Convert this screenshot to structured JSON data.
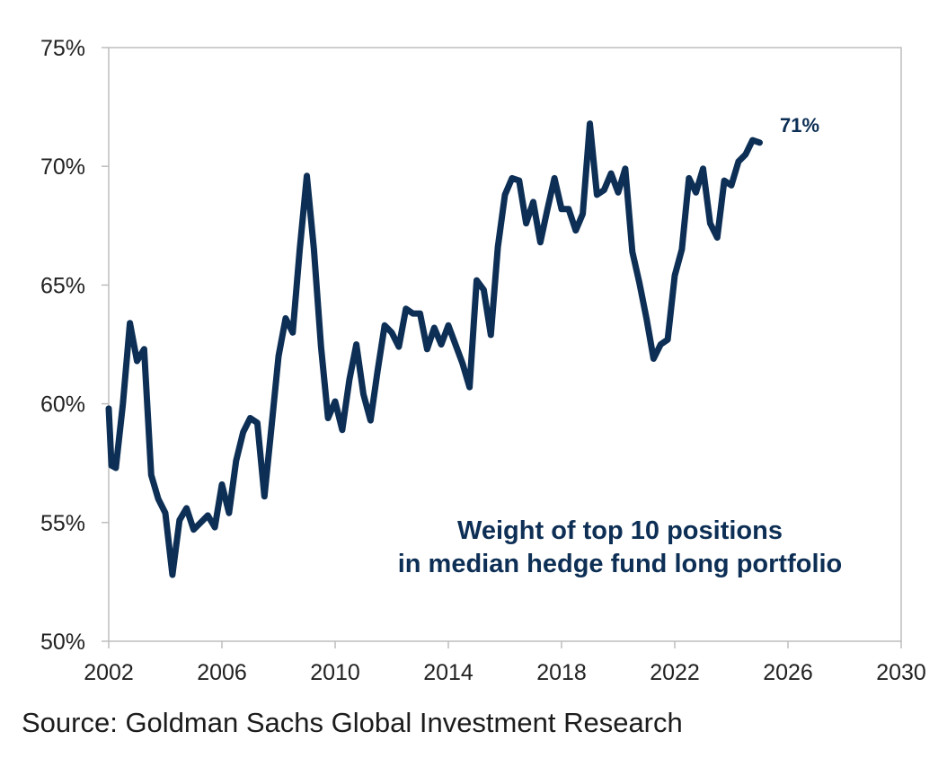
{
  "chart_data": {
    "type": "line",
    "title": "",
    "xlabel": "",
    "ylabel": "",
    "xlim": [
      2002,
      2030
    ],
    "ylim": [
      50,
      75
    ],
    "x_ticks": [
      2002,
      2006,
      2010,
      2014,
      2018,
      2022,
      2026,
      2030
    ],
    "y_ticks": [
      50,
      55,
      60,
      65,
      70,
      75
    ],
    "y_tick_labels": [
      "50%",
      "55%",
      "60%",
      "65%",
      "70%",
      "75%"
    ],
    "grid": false,
    "annotation": [
      "Weight of top 10 positions",
      "in median hedge fund long portfolio"
    ],
    "end_label": "71%",
    "line_color": "#0d2f55",
    "series": [
      {
        "x": [
          2002.0,
          2002.1,
          2002.25,
          2002.5,
          2002.75,
          2003.0,
          2003.25,
          2003.5,
          2003.75,
          2004.0,
          2004.25,
          2004.5,
          2004.75,
          2005.0,
          2005.25,
          2005.5,
          2005.75,
          2006.0,
          2006.25,
          2006.5,
          2006.75,
          2007.0,
          2007.25,
          2007.5,
          2007.75,
          2008.0,
          2008.25,
          2008.5,
          2008.75,
          2009.0,
          2009.25,
          2009.5,
          2009.75,
          2010.0,
          2010.25,
          2010.5,
          2010.75,
          2011.0,
          2011.25,
          2011.5,
          2011.75,
          2012.0,
          2012.25,
          2012.5,
          2012.75,
          2013.0,
          2013.25,
          2013.5,
          2013.75,
          2014.0,
          2014.25,
          2014.5,
          2014.75,
          2015.0,
          2015.25,
          2015.5,
          2015.75,
          2016.0,
          2016.25,
          2016.5,
          2016.75,
          2017.0,
          2017.25,
          2017.5,
          2017.75,
          2018.0,
          2018.25,
          2018.5,
          2018.75,
          2019.0,
          2019.25,
          2019.5,
          2019.75,
          2020.0,
          2020.25,
          2020.5,
          2020.75,
          2021.0,
          2021.25,
          2021.5,
          2021.75,
          2022.0,
          2022.25,
          2022.5,
          2022.75,
          2023.0,
          2023.25,
          2023.5,
          2023.75,
          2024.0,
          2024.25,
          2024.5,
          2024.75,
          2025.0
        ],
        "y": [
          59.8,
          57.4,
          57.3,
          60.0,
          63.4,
          61.8,
          62.3,
          57.0,
          56.0,
          55.4,
          52.8,
          55.1,
          55.6,
          54.7,
          55.0,
          55.3,
          54.8,
          56.6,
          55.4,
          57.6,
          58.8,
          59.4,
          59.2,
          56.1,
          59.0,
          62.0,
          63.6,
          63.0,
          66.5,
          69.6,
          66.5,
          62.4,
          59.4,
          60.1,
          58.9,
          61.0,
          62.5,
          60.4,
          59.3,
          61.4,
          63.3,
          63.0,
          62.4,
          64.0,
          63.8,
          63.8,
          62.3,
          63.2,
          62.5,
          63.3,
          62.5,
          61.7,
          60.7,
          65.2,
          64.8,
          62.9,
          66.6,
          68.8,
          69.5,
          69.4,
          67.6,
          68.5,
          66.8,
          68.2,
          69.5,
          68.2,
          68.2,
          67.3,
          68.0,
          71.8,
          68.8,
          69.0,
          69.7,
          68.9,
          69.9,
          66.4,
          65.1,
          63.6,
          61.9,
          62.5,
          62.7,
          65.4,
          66.5,
          69.5,
          68.9,
          69.9,
          67.6,
          67.0,
          69.4,
          69.2,
          70.2,
          70.5,
          71.1,
          71.0
        ]
      }
    ]
  },
  "source": "Source: Goldman Sachs Global Investment Research"
}
